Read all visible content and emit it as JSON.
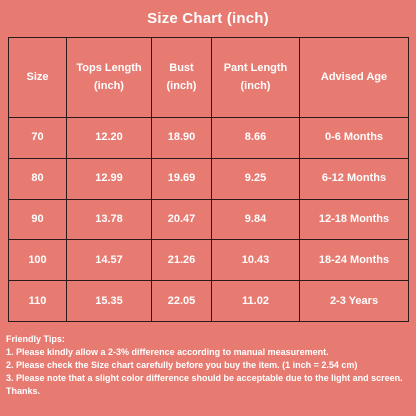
{
  "title": "Size Chart (inch)",
  "table": {
    "headers": [
      [
        "Size"
      ],
      [
        "Tops Length",
        "(inch)"
      ],
      [
        "Bust",
        "(inch)"
      ],
      [
        "Pant Length",
        "(inch)"
      ],
      [
        "Advised Age"
      ]
    ],
    "rows": [
      [
        "70",
        "12.20",
        "18.90",
        "8.66",
        "0-6 Months"
      ],
      [
        "80",
        "12.99",
        "19.69",
        "9.25",
        "6-12 Months"
      ],
      [
        "90",
        "13.78",
        "20.47",
        "9.84",
        "12-18 Months"
      ],
      [
        "100",
        "14.57",
        "21.26",
        "10.43",
        "18-24 Months"
      ],
      [
        "110",
        "15.35",
        "22.05",
        "11.02",
        "2-3 Years"
      ]
    ]
  },
  "tips": {
    "heading": "Friendly Tips:",
    "items": [
      "1. Please kindly allow a 2-3% difference according to manual measurement.",
      "2. Please check the Size chart carefully before you buy the item. (1 inch = 2.54 cm)",
      "3. Please note that a slight color difference should be acceptable due to the light and screen. Thanks."
    ]
  },
  "colors": {
    "background": "#E77B72",
    "text": "#FFFFFF",
    "border": "#2B1A1A"
  }
}
